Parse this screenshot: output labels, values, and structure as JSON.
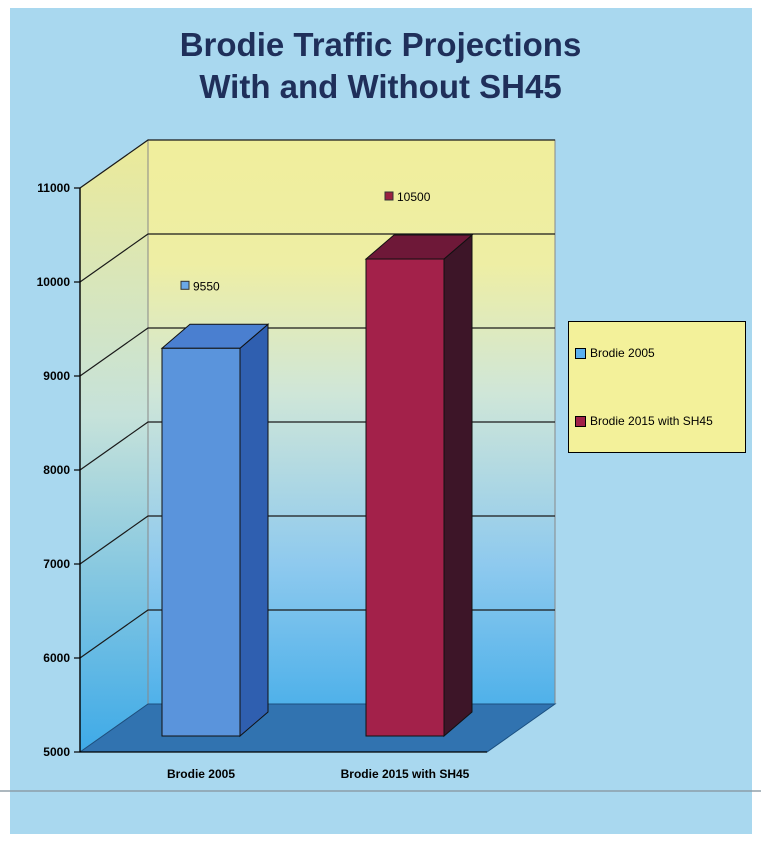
{
  "chart_data": {
    "type": "bar",
    "title": [
      "Brodie Traffic Projections",
      "With and Without SH45"
    ],
    "categories": [
      "Brodie 2005",
      "Brodie 2015 with SH45"
    ],
    "series": [
      {
        "name": "Brodie 2005",
        "values": [
          9550,
          null
        ],
        "color": "#5a8fd6"
      },
      {
        "name": "Brodie 2015 with SH45",
        "values": [
          null,
          10500
        ],
        "color": "#a02048"
      }
    ],
    "data_labels": [
      "9550",
      "10500"
    ],
    "y_ticks": [
      "5000",
      "6000",
      "7000",
      "8000",
      "9000",
      "10000",
      "11000"
    ],
    "ylim": [
      5000,
      11000
    ],
    "grid": true,
    "legend_position": "right",
    "style": "3d-column"
  }
}
